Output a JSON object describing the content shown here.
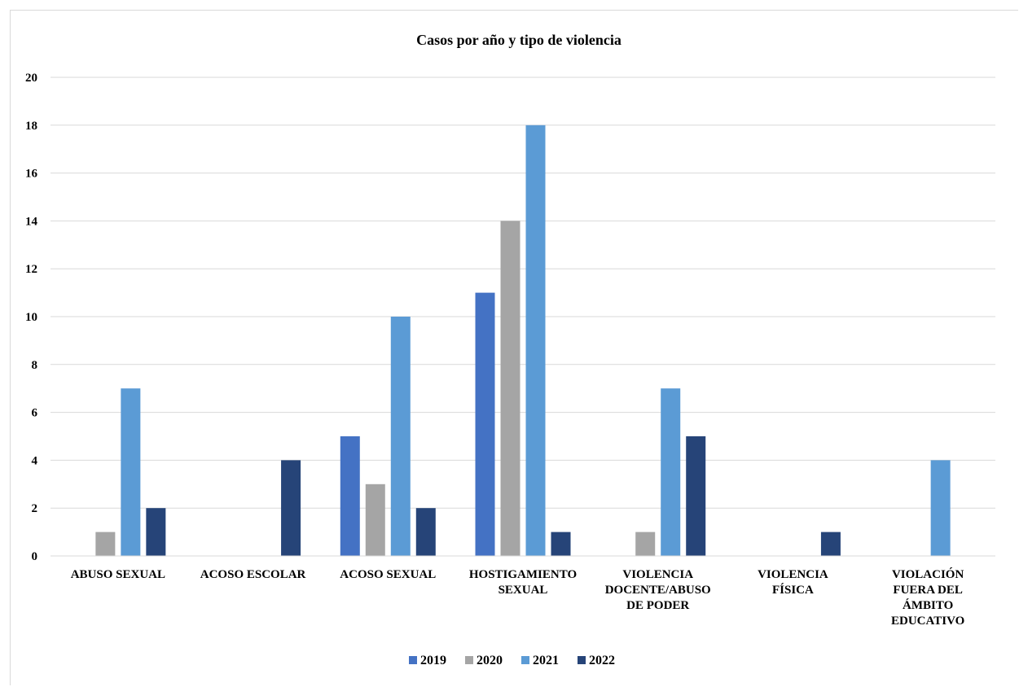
{
  "chart_data": {
    "type": "bar",
    "title": "Casos por año y tipo de violencia",
    "xlabel": "",
    "ylabel": "",
    "ylim": [
      0,
      20
    ],
    "yticks": [
      "0",
      "2",
      "4",
      "6",
      "8",
      "10",
      "12",
      "14",
      "16",
      "18",
      "20"
    ],
    "grid": true,
    "legend_position": "bottom",
    "categories": [
      [
        "ABUSO SEXUAL"
      ],
      [
        "ACOSO ESCOLAR"
      ],
      [
        "ACOSO SEXUAL"
      ],
      [
        "HOSTIGAMIENTO",
        "SEXUAL"
      ],
      [
        "VIOLENCIA",
        "DOCENTE/ABUSO",
        "DE PODER"
      ],
      [
        "VIOLENCIA",
        "FÍSICA"
      ],
      [
        "VIOLACIÓN",
        "FUERA DEL",
        "ÁMBITO",
        "EDUCATIVO"
      ]
    ],
    "series": [
      {
        "name": "2019",
        "color": "#4472c4",
        "values": [
          0,
          0,
          5,
          11,
          0,
          0,
          0
        ]
      },
      {
        "name": "2020",
        "color": "#a5a5a5",
        "values": [
          1,
          0,
          3,
          14,
          1,
          0,
          0
        ]
      },
      {
        "name": "2021",
        "color": "#5b9bd5",
        "values": [
          7,
          0,
          10,
          18,
          7,
          0,
          4
        ]
      },
      {
        "name": "2022",
        "color": "#264478",
        "values": [
          2,
          4,
          2,
          1,
          5,
          1,
          0
        ]
      }
    ]
  }
}
